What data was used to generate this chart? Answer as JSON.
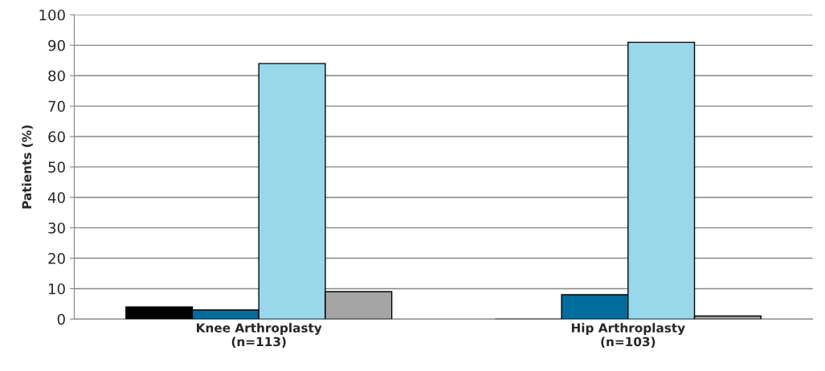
{
  "chart_data": {
    "type": "bar",
    "ylabel": "Patients (%)",
    "categories": [
      "Knee Arthroplasty\n(n=113)",
      "Hip Arthroplasty\n(n=103)"
    ],
    "series": [
      {
        "color": "#000000",
        "values": [
          4,
          0
        ]
      },
      {
        "color": "#006d9c",
        "values": [
          3,
          8
        ]
      },
      {
        "color": "#99d8ea",
        "values": [
          84,
          91
        ]
      },
      {
        "color": "#a5a5a5",
        "values": [
          9,
          1
        ]
      }
    ],
    "ylim": [
      0,
      100
    ],
    "yticks": [
      0,
      10,
      20,
      30,
      40,
      50,
      60,
      70,
      80,
      90,
      100
    ],
    "grid": "y",
    "legend": false
  }
}
